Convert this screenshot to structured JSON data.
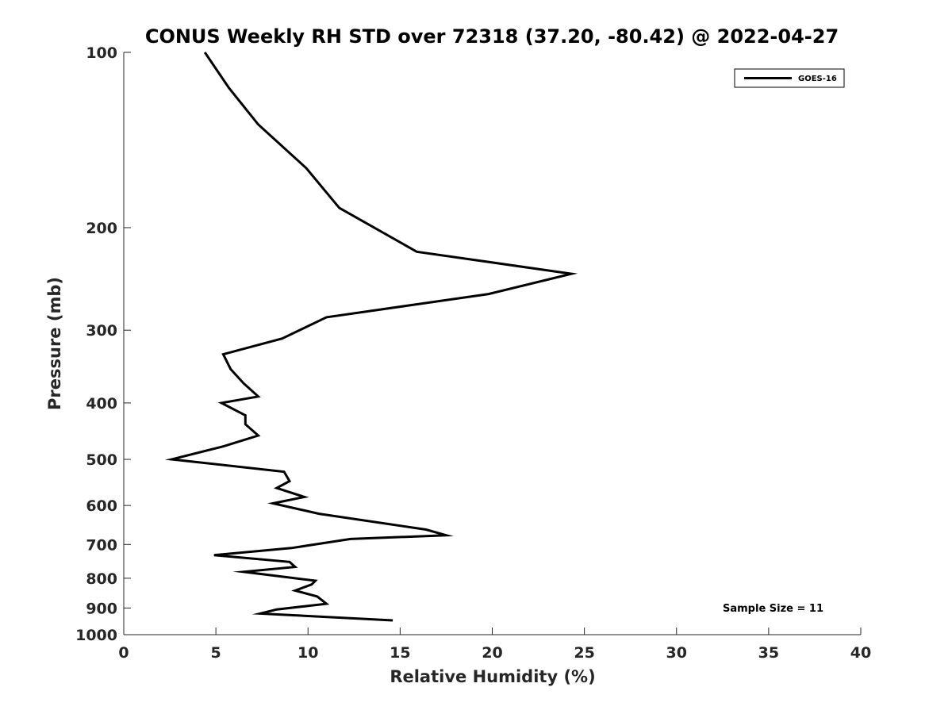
{
  "chart_data": {
    "type": "line",
    "title": "CONUS Weekly RH STD over 72318 (37.20, -80.42) @ 2022-04-27",
    "xlabel": "Relative Humidity (%)",
    "ylabel": "Pressure (mb)",
    "xlim": [
      0,
      40
    ],
    "ylim": [
      100,
      1000
    ],
    "y_scale": "log",
    "y_reversed": true,
    "x_ticks": [
      0,
      5,
      10,
      15,
      20,
      25,
      30,
      35,
      40
    ],
    "y_ticks": [
      100,
      200,
      300,
      400,
      500,
      600,
      700,
      800,
      900,
      1000
    ],
    "grid": false,
    "legend_position": "top-right",
    "series": [
      {
        "name": "GOES-16",
        "color": "#000000",
        "x": [
          4.4,
          5.7,
          7.3,
          9.9,
          11.7,
          15.9,
          24.3,
          19.8,
          11.0,
          8.6,
          5.4,
          5.8,
          6.5,
          7.3,
          5.3,
          6.6,
          6.6,
          7.3,
          5.4,
          2.6,
          8.7,
          9.0,
          8.3,
          9.8,
          8.1,
          10.6,
          16.4,
          17.5,
          12.3,
          9.1,
          4.9,
          9.0,
          9.3,
          6.5,
          10.4,
          10.2,
          9.3,
          10.5,
          11.0,
          8.3,
          7.4,
          14.6
        ],
        "y": [
          100,
          115,
          133,
          158,
          185,
          220,
          240,
          260,
          285,
          310,
          330,
          350,
          370,
          390,
          400,
          420,
          435,
          455,
          475,
          500,
          525,
          545,
          560,
          580,
          595,
          620,
          660,
          675,
          685,
          710,
          730,
          750,
          765,
          780,
          808,
          820,
          840,
          860,
          885,
          905,
          920,
          945
        ]
      }
    ],
    "annotations": [
      "Sample Size = 11"
    ]
  }
}
